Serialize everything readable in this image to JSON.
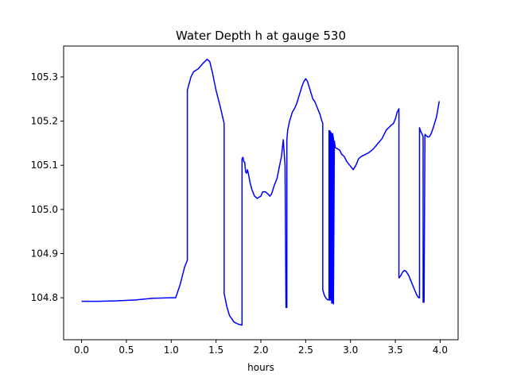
{
  "chart_data": {
    "type": "line",
    "title": "Water Depth h at gauge 530",
    "xlabel": "hours",
    "ylabel": "",
    "xlim": [
      -0.2,
      4.2
    ],
    "ylim": [
      104.705,
      105.37
    ],
    "xticks": [
      0.0,
      0.5,
      1.0,
      1.5,
      2.0,
      2.5,
      3.0,
      3.5,
      4.0
    ],
    "xtick_labels": [
      "0.0",
      "0.5",
      "1.0",
      "1.5",
      "2.0",
      "2.5",
      "3.0",
      "3.5",
      "4.0"
    ],
    "yticks": [
      104.8,
      104.9,
      105.0,
      105.1,
      105.2,
      105.3
    ],
    "ytick_labels": [
      "104.8",
      "104.9",
      "105.0",
      "105.1",
      "105.2",
      "105.3"
    ],
    "grid": false,
    "series": [
      {
        "color": "#0000ff",
        "x": [
          0.0,
          0.2,
          0.4,
          0.6,
          0.8,
          1.0,
          1.05,
          1.1,
          1.15,
          1.18,
          1.18,
          1.2,
          1.22,
          1.25,
          1.3,
          1.35,
          1.4,
          1.43,
          1.46,
          1.5,
          1.55,
          1.59,
          1.59,
          1.62,
          1.65,
          1.7,
          1.75,
          1.79,
          1.79,
          1.8,
          1.81,
          1.82,
          1.83,
          1.84,
          1.85,
          1.86,
          1.88,
          1.9,
          1.93,
          1.96,
          1.98,
          2.0,
          2.02,
          2.05,
          2.08,
          2.1,
          2.12,
          2.15,
          2.18,
          2.2,
          2.23,
          2.25,
          2.27,
          2.28,
          2.29,
          2.29,
          2.3,
          2.3,
          2.32,
          2.35,
          2.38,
          2.4,
          2.43,
          2.46,
          2.48,
          2.5,
          2.52,
          2.55,
          2.58,
          2.6,
          2.63,
          2.66,
          2.68,
          2.69,
          2.69,
          2.71,
          2.73,
          2.75,
          2.76,
          2.76,
          2.77,
          2.77,
          2.78,
          2.78,
          2.79,
          2.79,
          2.8,
          2.8,
          2.81,
          2.81,
          2.82,
          2.83,
          2.85,
          2.88,
          2.9,
          2.93,
          2.96,
          3.0,
          3.03,
          3.06,
          3.09,
          3.12,
          3.15,
          3.2,
          3.25,
          3.3,
          3.35,
          3.4,
          3.45,
          3.48,
          3.5,
          3.52,
          3.54,
          3.54,
          3.56,
          3.58,
          3.6,
          3.62,
          3.65,
          3.68,
          3.71,
          3.74,
          3.76,
          3.77,
          3.77,
          3.78,
          3.8,
          3.81,
          3.81,
          3.82,
          3.83,
          3.84,
          3.86,
          3.88,
          3.9,
          3.93,
          3.96,
          3.99
        ],
        "values": [
          104.792,
          104.792,
          104.793,
          104.795,
          104.799,
          104.8,
          104.8,
          104.83,
          104.87,
          104.885,
          105.27,
          105.285,
          105.3,
          105.312,
          105.318,
          105.33,
          105.34,
          105.335,
          105.31,
          105.27,
          105.23,
          105.195,
          104.81,
          104.78,
          104.76,
          104.745,
          104.74,
          104.738,
          105.115,
          105.118,
          105.108,
          105.107,
          105.085,
          105.082,
          105.09,
          105.082,
          105.06,
          105.045,
          105.03,
          105.025,
          105.028,
          105.03,
          105.04,
          105.04,
          105.035,
          105.03,
          105.035,
          105.055,
          105.07,
          105.09,
          105.12,
          105.158,
          105.1,
          104.778,
          104.778,
          105.158,
          105.18,
          105.18,
          105.2,
          105.22,
          105.23,
          105.24,
          105.26,
          105.28,
          105.29,
          105.296,
          105.29,
          105.27,
          105.25,
          105.245,
          105.23,
          105.215,
          105.2,
          105.195,
          104.818,
          104.805,
          104.798,
          104.795,
          104.795,
          105.178,
          105.178,
          104.795,
          104.795,
          105.175,
          105.17,
          104.788,
          104.788,
          105.172,
          105.16,
          104.786,
          105.155,
          105.14,
          105.138,
          105.134,
          105.125,
          105.12,
          105.108,
          105.098,
          105.09,
          105.1,
          105.115,
          105.12,
          105.123,
          105.128,
          105.136,
          105.148,
          105.16,
          105.18,
          105.19,
          105.195,
          105.205,
          105.22,
          105.228,
          104.845,
          104.85,
          104.858,
          104.862,
          104.86,
          104.85,
          104.835,
          104.82,
          104.806,
          104.8,
          104.8,
          105.185,
          105.178,
          105.17,
          105.165,
          104.79,
          104.79,
          105.17,
          105.168,
          105.164,
          105.165,
          105.172,
          105.19,
          105.21,
          105.245
        ]
      }
    ]
  }
}
